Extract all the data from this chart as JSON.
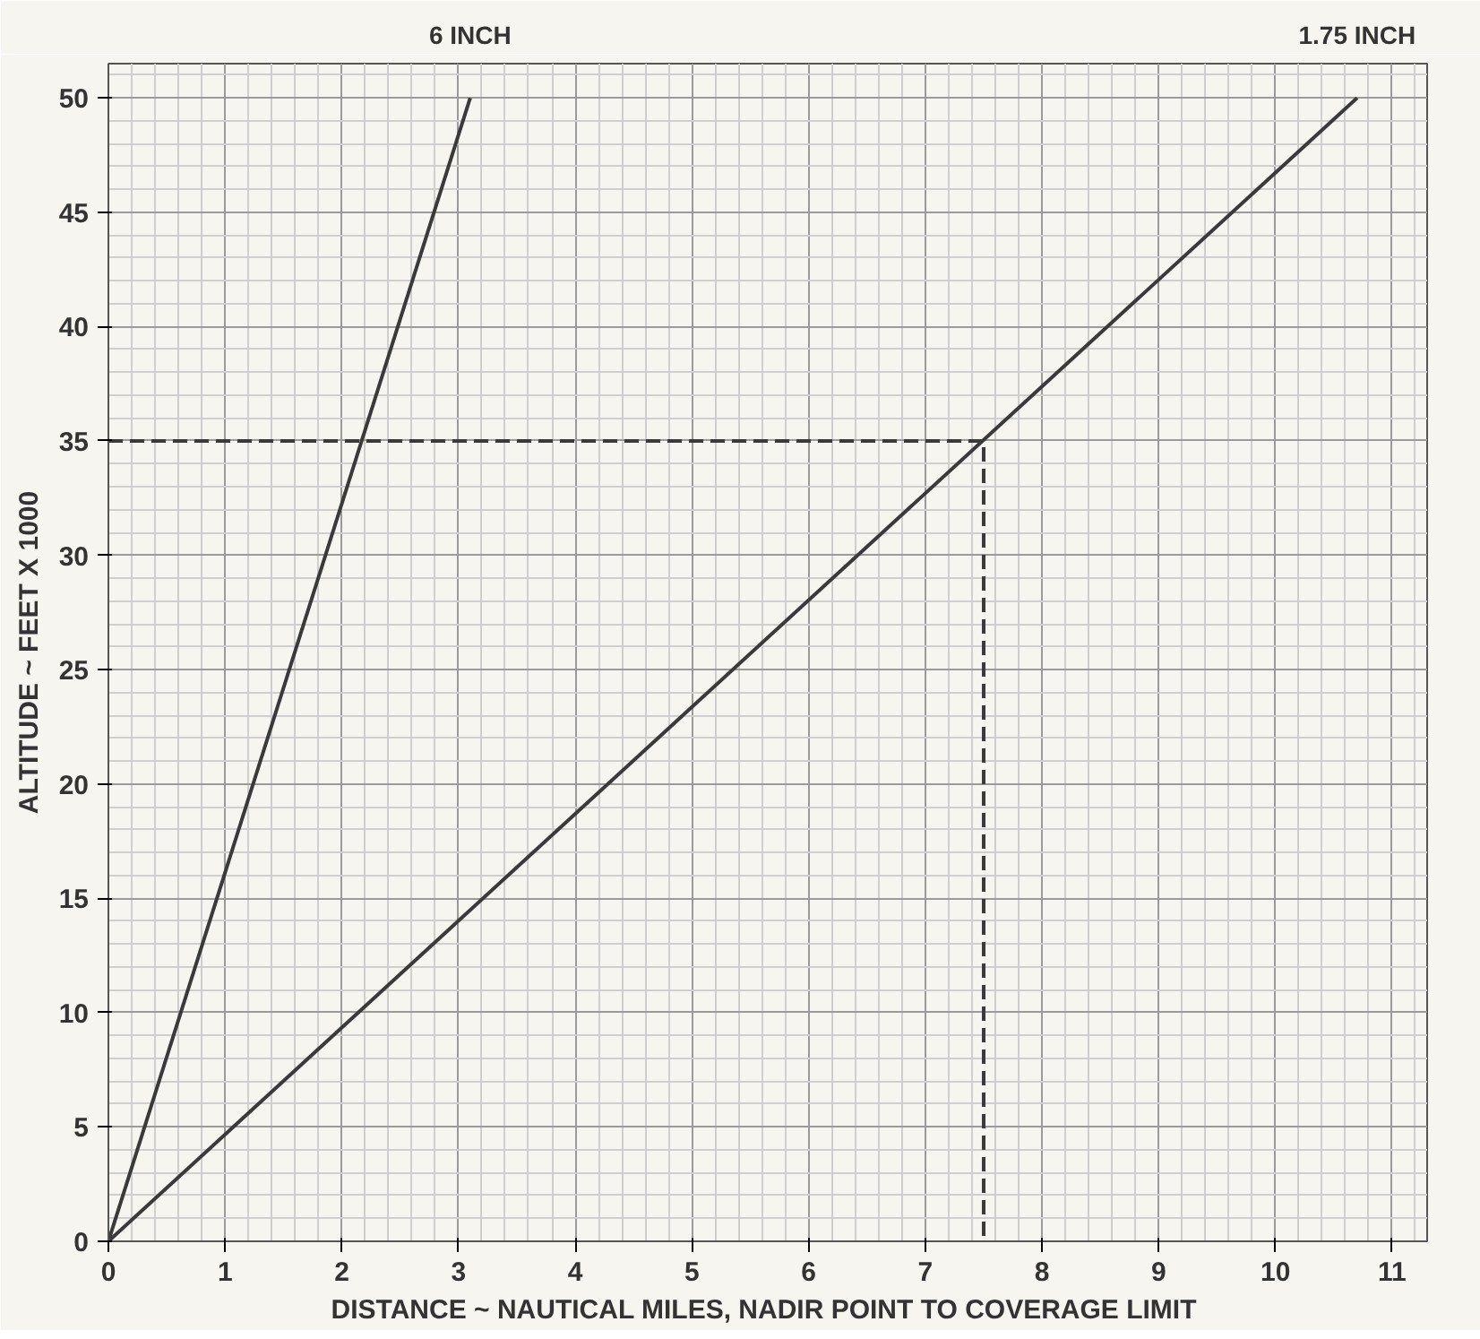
{
  "chart_data": {
    "type": "line",
    "xlabel": "DISTANCE ~ NAUTICAL MILES,  NADIR POINT TO COVERAGE LIMIT",
    "ylabel": "ALTITUDE ~ FEET X 1000",
    "series": [
      {
        "name": "6 INCH",
        "color": "#3a3a3a",
        "x": [
          0,
          3.1
        ],
        "values": [
          0,
          50
        ]
      },
      {
        "name": "1.75 INCH",
        "color": "#3a3a3a",
        "x": [
          0,
          10.7
        ],
        "values": [
          0,
          50
        ]
      },
      {
        "color": "#3a3a3a",
        "x": [
          0,
          7.5,
          7.5
        ],
        "values": [
          35,
          35,
          0
        ],
        "line_style": "dashed"
      }
    ],
    "xlim": [
      0,
      11.3
    ],
    "ylim": [
      0,
      51.5
    ],
    "xticks": [
      0,
      1,
      2,
      3,
      4,
      5,
      6,
      7,
      8,
      9,
      10,
      11
    ],
    "yticks": [
      0,
      5,
      10,
      15,
      20,
      25,
      30,
      35,
      40,
      45,
      50
    ],
    "grid": true,
    "marker": "none",
    "line_style": "solid"
  }
}
